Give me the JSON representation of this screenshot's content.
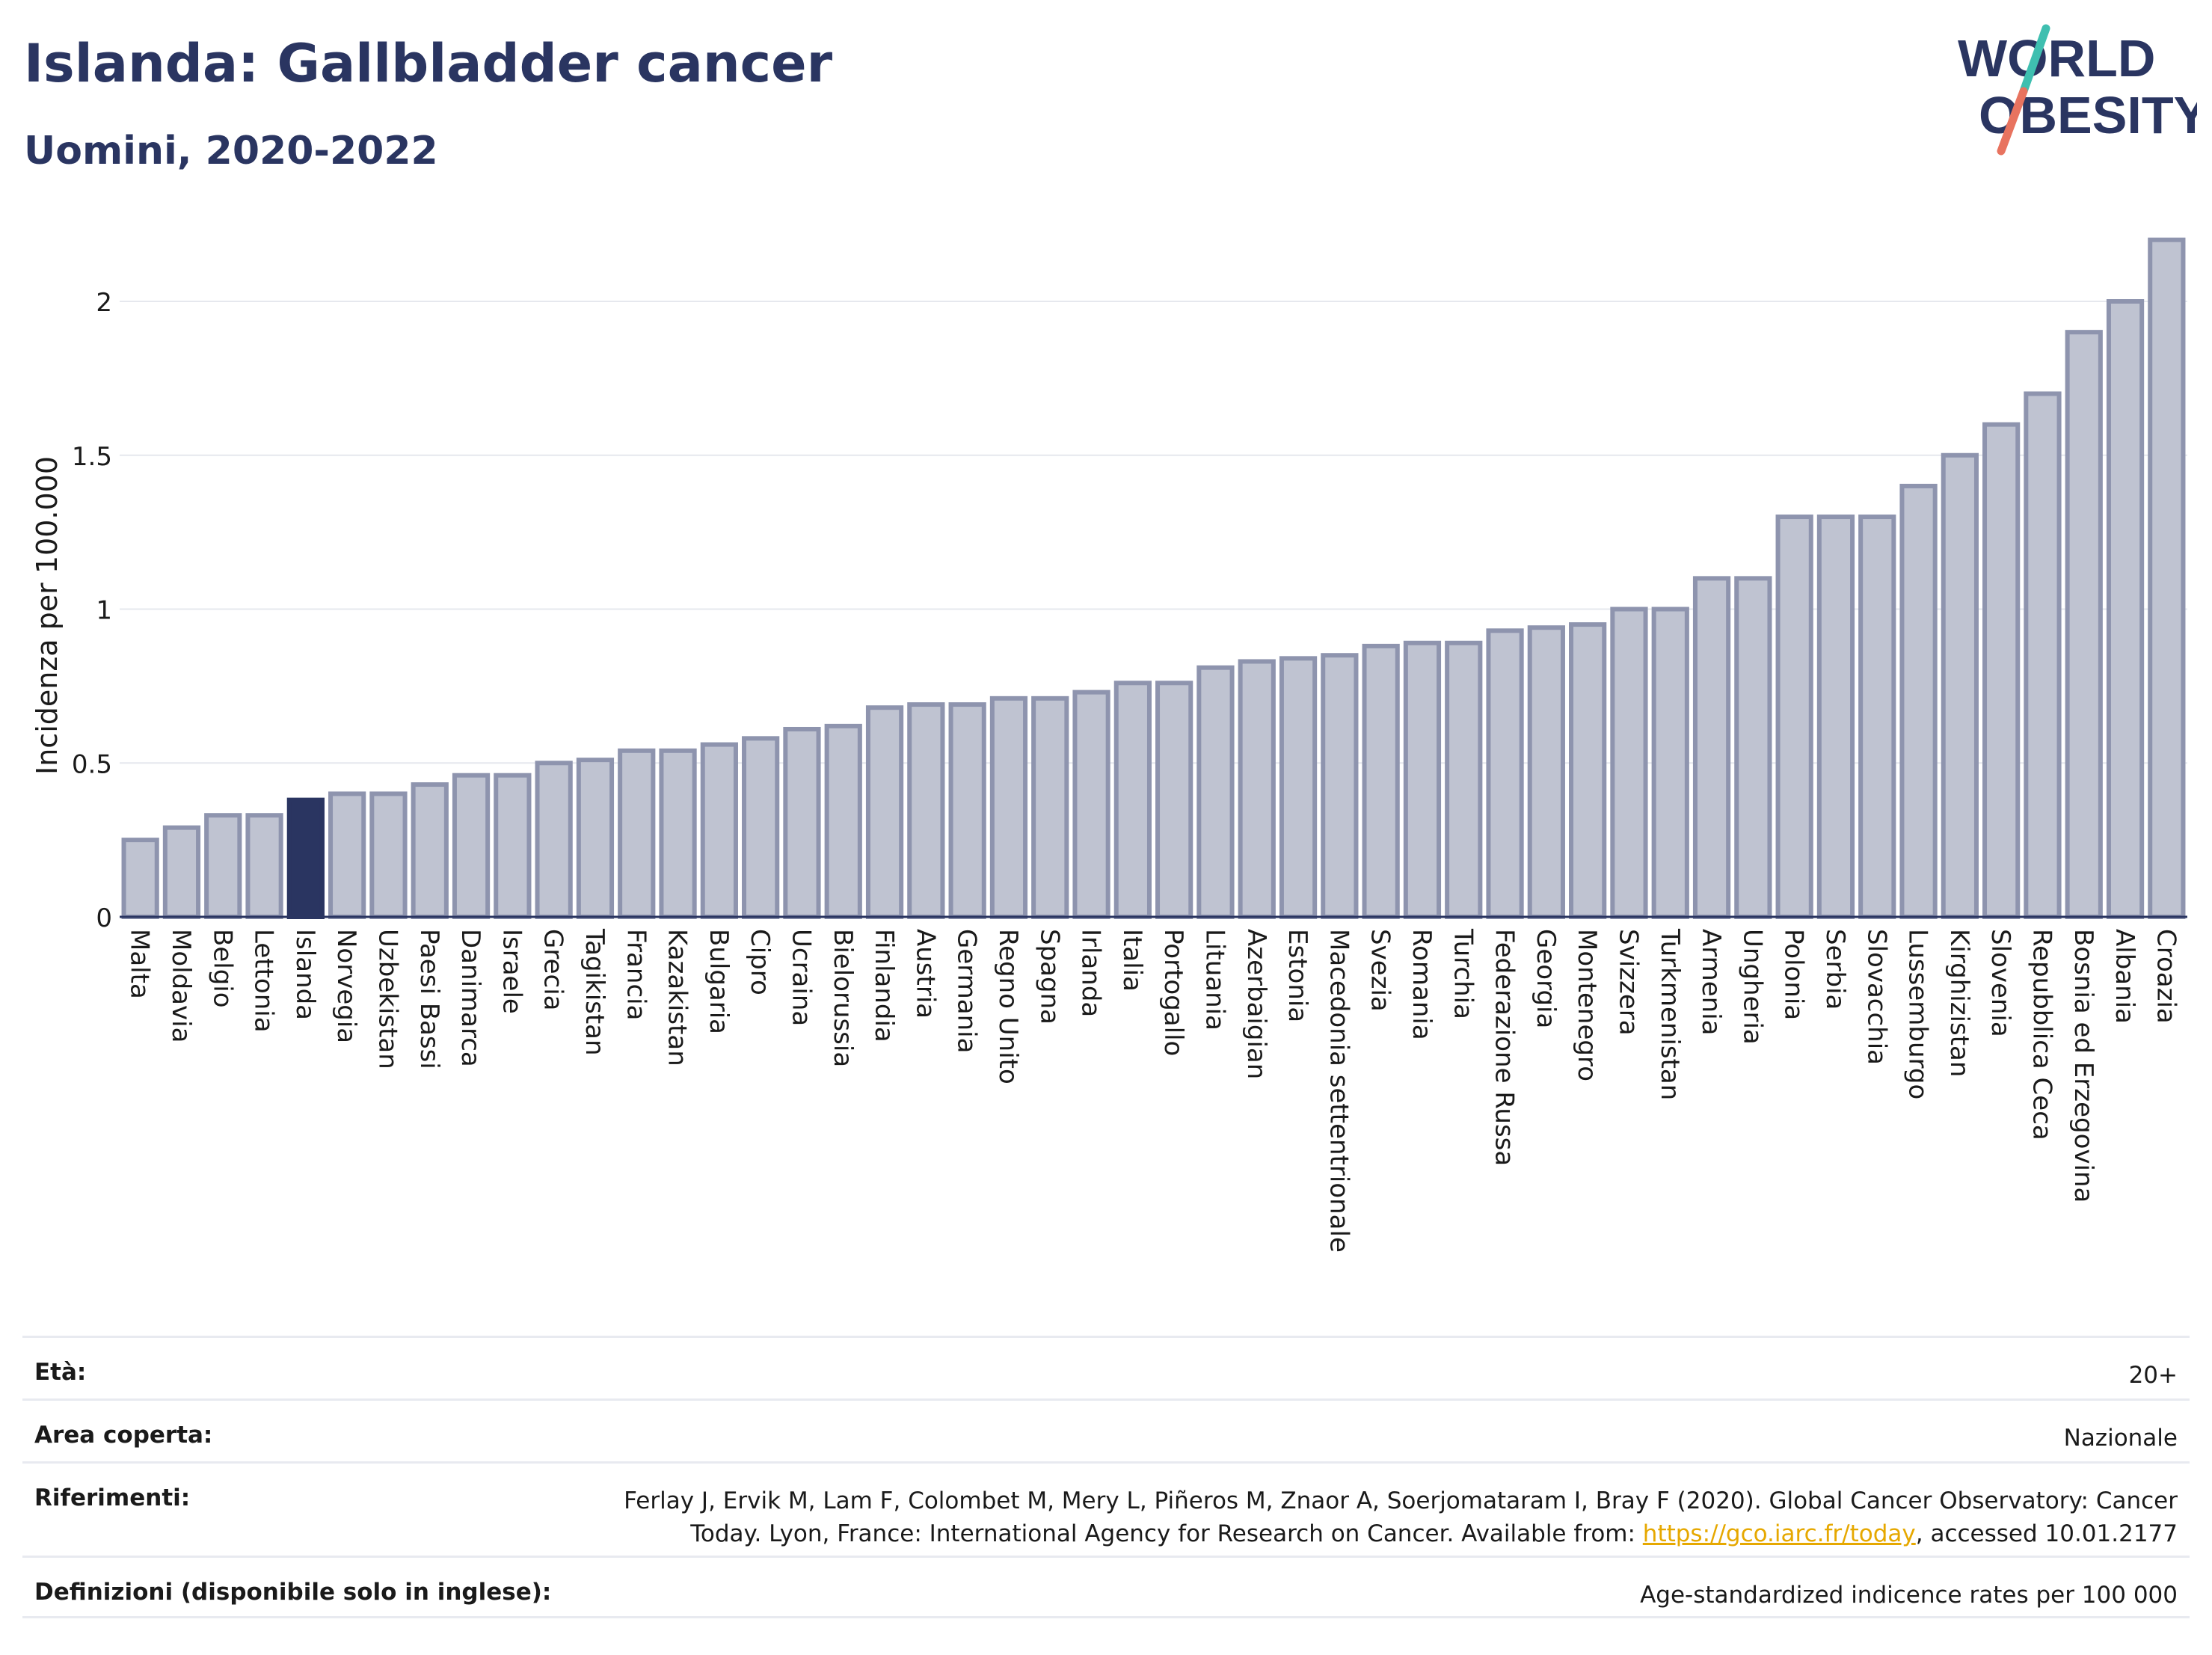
{
  "header": {
    "title": "Islanda: Gallbladder cancer",
    "subtitle": "Uomini, 2020-2022",
    "logo_line1": "WORLD",
    "logo_line2": "OBESITY"
  },
  "colors": {
    "brand_navy": "#2a3561",
    "bar_fill": "#bfc3d1",
    "bar_stroke": "#8e94ae",
    "highlight": "#2a3561",
    "logo_teal": "#3fbfb0",
    "logo_coral": "#e8735f",
    "link": "#e6a800"
  },
  "chart_data": {
    "type": "bar",
    "ylabel": "Incidenza per 100.000",
    "ylim": [
      0,
      2.2
    ],
    "yticks": [
      0,
      0.5,
      1,
      1.5,
      2
    ],
    "ytick_labels": [
      "0",
      "0.5",
      "1",
      "1.5",
      "2"
    ],
    "grid": true,
    "highlight_category": "Islanda",
    "categories": [
      "Malta",
      "Moldavia",
      "Belgio",
      "Lettonia",
      "Islanda",
      "Norvegia",
      "Uzbekistan",
      "Paesi Bassi",
      "Danimarca",
      "Israele",
      "Grecia",
      "Tagikistan",
      "Francia",
      "Kazakistan",
      "Bulgaria",
      "Cipro",
      "Ucraina",
      "Bielorussia",
      "Finlandia",
      "Austria",
      "Germania",
      "Regno Unito",
      "Spagna",
      "Irlanda",
      "Italia",
      "Portogallo",
      "Lituania",
      "Azerbaigian",
      "Estonia",
      "Macedonia settentrionale",
      "Svezia",
      "Romania",
      "Turchia",
      "Federazione Russa",
      "Georgia",
      "Montenegro",
      "Svizzera",
      "Turkmenistan",
      "Armenia",
      "Ungheria",
      "Polonia",
      "Serbia",
      "Slovacchia",
      "Lussemburgo",
      "Kirghizistan",
      "Slovenia",
      "Repubblica Ceca",
      "Bosnia ed Erzegovina",
      "Albania",
      "Croazia"
    ],
    "values": [
      0.25,
      0.29,
      0.33,
      0.33,
      0.38,
      0.4,
      0.4,
      0.43,
      0.46,
      0.46,
      0.5,
      0.51,
      0.54,
      0.54,
      0.56,
      0.58,
      0.61,
      0.62,
      0.68,
      0.69,
      0.69,
      0.71,
      0.71,
      0.73,
      0.76,
      0.76,
      0.81,
      0.83,
      0.84,
      0.85,
      0.88,
      0.89,
      0.89,
      0.93,
      0.94,
      0.95,
      1.0,
      1.0,
      1.1,
      1.1,
      1.3,
      1.3,
      1.3,
      1.4,
      1.5,
      1.6,
      1.7,
      1.9,
      2.0,
      2.2
    ]
  },
  "meta": {
    "age_label": "Età:",
    "age_value": "20+",
    "area_label": "Area coperta:",
    "area_value": "Nazionale",
    "refs_label": "Riferimenti:",
    "refs_text_1": "Ferlay J, Ervik M, Lam F, Colombet M, Mery L, Piñeros M, Znaor A, Soerjomataram I, Bray F (2020). Global Cancer Observatory: Cancer",
    "refs_text_2": "Today. Lyon, France: International Agency for Research on Cancer. Available from: ",
    "refs_link": "https://gco.iarc.fr/today",
    "refs_text_3": ", accessed 10.01.2177",
    "defs_label": "Definizioni (disponibile solo in inglese):",
    "defs_value": "Age-standardized indicence rates per 100 000"
  }
}
